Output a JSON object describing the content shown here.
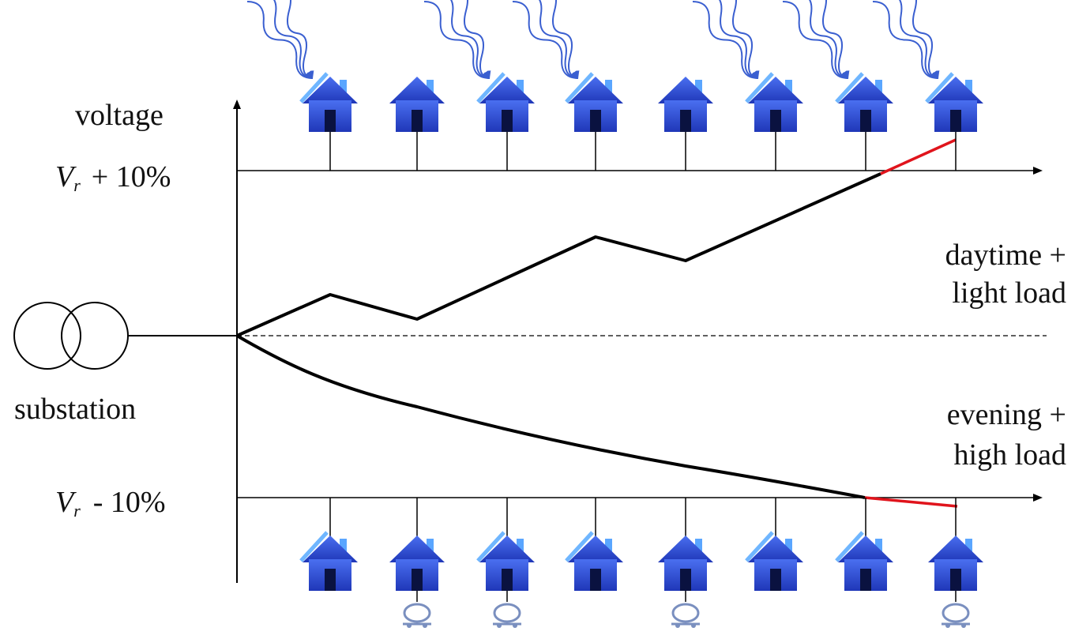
{
  "labels": {
    "voltage": "voltage",
    "v_upper_symbol": "V",
    "v_upper_subscript": "r",
    "v_upper_text": "+ 10%",
    "v_lower_symbol": "V",
    "v_lower_subscript": "r",
    "v_lower_text": "- 10%",
    "substation": "substation",
    "day_line1": "daytime +",
    "day_line2": "light load",
    "evening_line1": "evening +",
    "evening_line2": "high load"
  },
  "houses_top": [
    {
      "sun": true,
      "panel": true
    },
    {
      "sun": false,
      "panel": false
    },
    {
      "sun": true,
      "panel": true
    },
    {
      "sun": true,
      "panel": true
    },
    {
      "sun": false,
      "panel": false
    },
    {
      "sun": true,
      "panel": true
    },
    {
      "sun": true,
      "panel": true
    },
    {
      "sun": true,
      "panel": true
    }
  ],
  "houses_bottom": [
    {
      "panel": true,
      "ev": false
    },
    {
      "panel": false,
      "ev": true
    },
    {
      "panel": true,
      "ev": true
    },
    {
      "panel": true,
      "ev": false
    },
    {
      "panel": false,
      "ev": true
    },
    {
      "panel": true,
      "ev": false
    },
    {
      "panel": true,
      "ev": false
    },
    {
      "panel": false,
      "ev": true
    }
  ],
  "colors": {
    "house": "#2f4fd6",
    "house_dark": "#1a2f8f",
    "panel": "#6fb6ff",
    "sun_rays": "#3a5fd0",
    "violation": "#e0141c",
    "line": "#000000"
  }
}
